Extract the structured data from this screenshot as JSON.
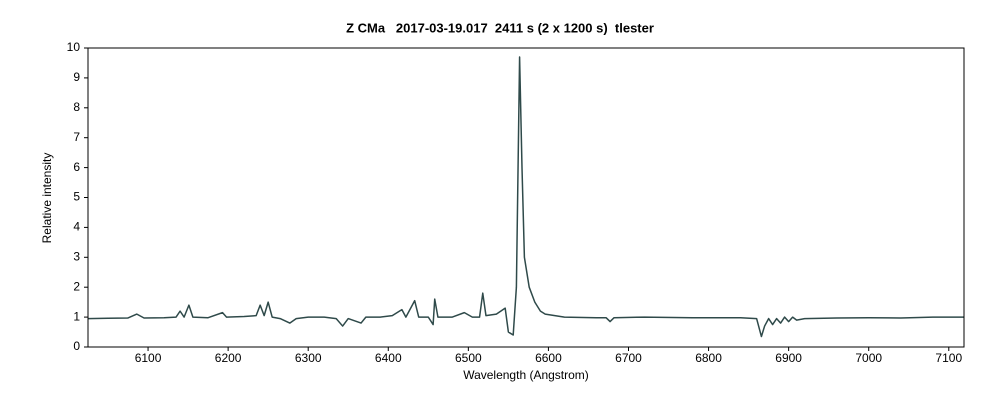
{
  "chart_data": {
    "type": "line",
    "title": "Z CMa   2017-03-19.017  2411 s (2 x 1200 s)  tlester",
    "x_label": "Wavelength (Angstrom)",
    "y_label": "Relative intensity",
    "xlim": [
      6025,
      7119
    ],
    "ylim": [
      0,
      10
    ],
    "xticks": [
      6100,
      6200,
      6300,
      6400,
      6500,
      6600,
      6700,
      6800,
      6900,
      7000,
      7100
    ],
    "yticks": [
      0,
      1,
      2,
      3,
      4,
      5,
      6,
      7,
      8,
      9,
      10
    ],
    "color": "#2f4a4a",
    "x": [
      6025,
      6050,
      6075,
      6086,
      6095,
      6120,
      6135,
      6140,
      6145,
      6151,
      6156,
      6175,
      6193,
      6198,
      6220,
      6235,
      6240,
      6245,
      6250,
      6255,
      6265,
      6277,
      6285,
      6300,
      6320,
      6335,
      6343,
      6350,
      6366,
      6372,
      6390,
      6405,
      6417,
      6422,
      6433,
      6438,
      6450,
      6456,
      6458,
      6462,
      6480,
      6495,
      6505,
      6514,
      6518,
      6522,
      6535,
      6546,
      6550,
      6556,
      6560,
      6564,
      6567,
      6570,
      6576,
      6583,
      6590,
      6596,
      6620,
      6660,
      6672,
      6677,
      6682,
      6720,
      6780,
      6840,
      6860,
      6866,
      6870,
      6875,
      6880,
      6885,
      6890,
      6895,
      6900,
      6905,
      6910,
      6920,
      6960,
      7000,
      7040,
      7080,
      7119
    ],
    "values": [
      0.95,
      0.96,
      0.97,
      1.1,
      0.97,
      0.98,
      1.0,
      1.2,
      1.0,
      1.4,
      1.0,
      0.98,
      1.15,
      1.0,
      1.02,
      1.05,
      1.4,
      1.05,
      1.5,
      1.0,
      0.95,
      0.8,
      0.95,
      1.0,
      1.0,
      0.95,
      0.7,
      0.95,
      0.8,
      1.0,
      1.0,
      1.05,
      1.25,
      1.0,
      1.55,
      1.0,
      1.0,
      0.75,
      1.6,
      1.0,
      1.0,
      1.15,
      1.0,
      1.0,
      1.8,
      1.05,
      1.1,
      1.3,
      0.5,
      0.4,
      2.0,
      9.7,
      6.0,
      3.0,
      2.0,
      1.5,
      1.2,
      1.1,
      1.0,
      0.98,
      0.98,
      0.85,
      0.98,
      1.0,
      0.98,
      0.98,
      0.95,
      0.35,
      0.7,
      0.95,
      0.75,
      0.95,
      0.8,
      1.0,
      0.85,
      1.0,
      0.9,
      0.95,
      0.97,
      0.98,
      0.97,
      1.0,
      1.0
    ]
  }
}
